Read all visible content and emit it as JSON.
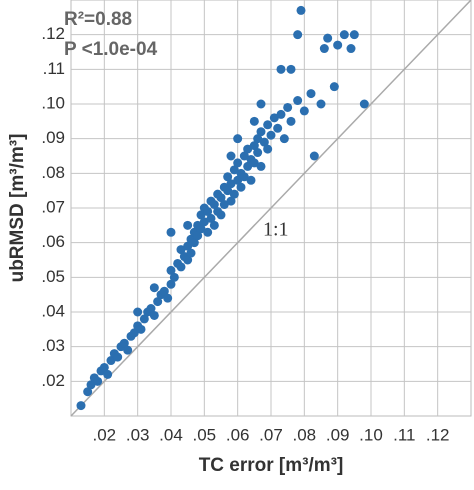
{
  "chart_data": {
    "type": "scatter",
    "x_label": "TC error [m³/m³]",
    "y_label": "ubRMSD [m³/m³]",
    "annotations": [
      "R²=0.88",
      "P <1.0e-04",
      "1:1"
    ],
    "xlim": [
      0.01,
      0.13
    ],
    "ylim": [
      0.01,
      0.13
    ],
    "xticks": [
      {
        "value": 0.02,
        "label": ".02"
      },
      {
        "value": 0.03,
        "label": ".03"
      },
      {
        "value": 0.04,
        "label": ".04"
      },
      {
        "value": 0.05,
        "label": ".05"
      },
      {
        "value": 0.06,
        "label": ".06"
      },
      {
        "value": 0.07,
        "label": ".07"
      },
      {
        "value": 0.08,
        "label": ".08"
      },
      {
        "value": 0.09,
        "label": ".09"
      },
      {
        "value": 0.1,
        "label": ".10"
      },
      {
        "value": 0.11,
        "label": ".11"
      },
      {
        "value": 0.12,
        "label": ".12"
      }
    ],
    "yticks": [
      {
        "value": 0.02,
        "label": ".02"
      },
      {
        "value": 0.03,
        "label": ".03"
      },
      {
        "value": 0.04,
        "label": ".04"
      },
      {
        "value": 0.05,
        "label": ".05"
      },
      {
        "value": 0.06,
        "label": ".06"
      },
      {
        "value": 0.07,
        "label": ".07"
      },
      {
        "value": 0.08,
        "label": ".08"
      },
      {
        "value": 0.09,
        "label": ".09"
      },
      {
        "value": 0.1,
        "label": ".10"
      },
      {
        "value": 0.11,
        "label": ".11"
      },
      {
        "value": 0.12,
        "label": ".12"
      }
    ],
    "grid": true,
    "one_to_one_line": true,
    "series": [
      {
        "color": "#2b6fb0",
        "x": [
          0.013,
          0.015,
          0.016,
          0.017,
          0.018,
          0.019,
          0.02,
          0.021,
          0.022,
          0.023,
          0.024,
          0.025,
          0.026,
          0.027,
          0.028,
          0.029,
          0.03,
          0.031,
          0.032,
          0.033,
          0.034,
          0.035,
          0.036,
          0.037,
          0.038,
          0.039,
          0.04,
          0.04,
          0.041,
          0.042,
          0.043,
          0.043,
          0.044,
          0.045,
          0.045,
          0.046,
          0.046,
          0.047,
          0.047,
          0.048,
          0.048,
          0.049,
          0.049,
          0.05,
          0.05,
          0.051,
          0.051,
          0.052,
          0.052,
          0.053,
          0.053,
          0.054,
          0.054,
          0.055,
          0.055,
          0.056,
          0.056,
          0.057,
          0.057,
          0.058,
          0.058,
          0.059,
          0.059,
          0.06,
          0.06,
          0.061,
          0.061,
          0.062,
          0.062,
          0.063,
          0.063,
          0.064,
          0.064,
          0.065,
          0.065,
          0.066,
          0.066,
          0.067,
          0.067,
          0.068,
          0.069,
          0.069,
          0.07,
          0.071,
          0.072,
          0.073,
          0.074,
          0.075,
          0.076,
          0.078,
          0.079,
          0.08,
          0.082,
          0.083,
          0.085,
          0.086,
          0.087,
          0.089,
          0.09,
          0.092,
          0.094,
          0.095,
          0.098,
          0.073,
          0.065,
          0.06,
          0.045,
          0.04,
          0.035,
          0.03,
          0.058,
          0.067,
          0.076,
          0.078
        ],
        "y": [
          0.013,
          0.017,
          0.019,
          0.021,
          0.02,
          0.023,
          0.024,
          0.022,
          0.026,
          0.028,
          0.027,
          0.03,
          0.031,
          0.029,
          0.033,
          0.034,
          0.036,
          0.035,
          0.038,
          0.04,
          0.041,
          0.039,
          0.043,
          0.045,
          0.046,
          0.044,
          0.048,
          0.052,
          0.05,
          0.054,
          0.053,
          0.058,
          0.056,
          0.059,
          0.055,
          0.061,
          0.057,
          0.063,
          0.06,
          0.062,
          0.065,
          0.064,
          0.068,
          0.066,
          0.07,
          0.063,
          0.069,
          0.067,
          0.072,
          0.071,
          0.065,
          0.074,
          0.069,
          0.073,
          0.068,
          0.076,
          0.071,
          0.075,
          0.079,
          0.072,
          0.077,
          0.081,
          0.074,
          0.078,
          0.083,
          0.076,
          0.08,
          0.085,
          0.079,
          0.082,
          0.087,
          0.084,
          0.078,
          0.088,
          0.083,
          0.09,
          0.086,
          0.092,
          0.082,
          0.089,
          0.094,
          0.087,
          0.091,
          0.096,
          0.093,
          0.097,
          0.09,
          0.099,
          0.095,
          0.101,
          0.127,
          0.098,
          0.103,
          0.085,
          0.1,
          0.116,
          0.119,
          0.105,
          0.117,
          0.12,
          0.116,
          0.12,
          0.1,
          0.11,
          0.095,
          0.09,
          0.065,
          0.063,
          0.047,
          0.04,
          0.085,
          0.1,
          0.11,
          0.12
        ]
      }
    ]
  }
}
